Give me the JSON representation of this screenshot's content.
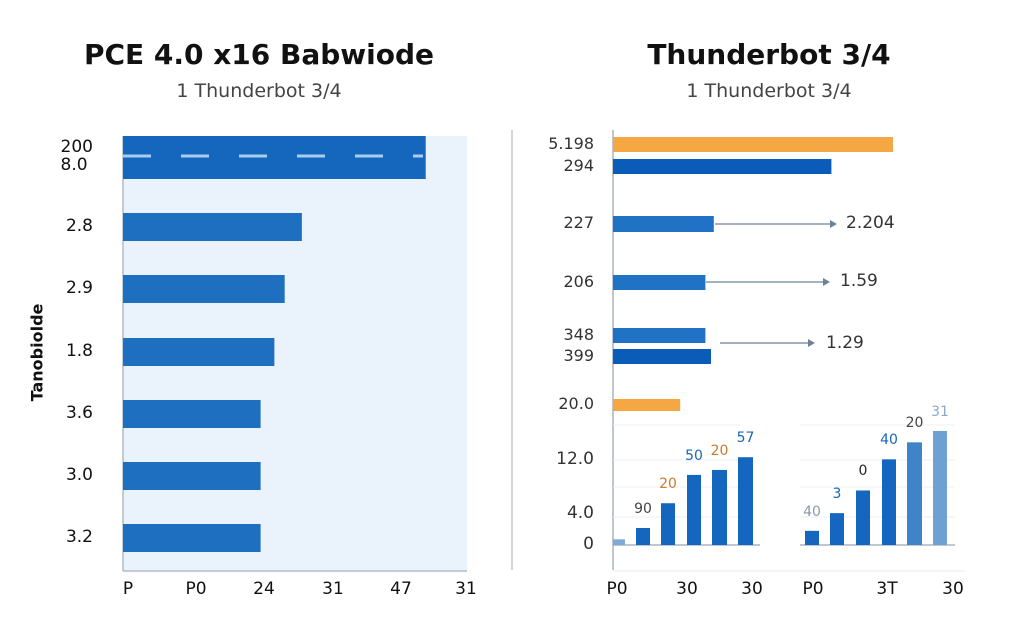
{
  "chart_data": [
    {
      "type": "bar",
      "orientation": "horizontal",
      "title": "PCE 4.0 x16 Babwiode",
      "subtitle": "1 Thunderbot 3/4",
      "ylabel": "Tanobiolde",
      "categories": [
        "200\n8.0",
        "2.8",
        "2.9",
        "1.8",
        "3.6",
        "3.0",
        "3.2"
      ],
      "values_pct_of_axis": [
        88,
        52,
        47,
        44,
        40,
        40,
        40
      ],
      "x_tick_labels": [
        "P",
        "P0",
        "24",
        "31",
        "47",
        "31"
      ],
      "color": "#1f6fc0",
      "background": "#eaf3fb"
    },
    {
      "type": "bar",
      "orientation": "horizontal",
      "title": "Thunderbot 3/4",
      "subtitle": "1 Thunderbot 3/4",
      "bars": [
        {
          "label": "5.198",
          "pct": 100,
          "color": "#f5a743"
        },
        {
          "label": "294",
          "pct": 78,
          "color": "#0b5cb8"
        },
        {
          "label": "227",
          "pct": 36,
          "color": "#1f72c4",
          "annotation": "2.204"
        },
        {
          "label": "206",
          "pct": 33,
          "color": "#1f72c4",
          "annotation": "1.59"
        },
        {
          "label": "348",
          "pct": 33,
          "color": "#1f72c4",
          "annotation": "1.29"
        },
        {
          "label": "399",
          "pct": 35,
          "color": "#0b5cb8"
        },
        {
          "label": "20.0",
          "pct": 24,
          "color": "#f5a743"
        }
      ]
    },
    {
      "type": "bar",
      "y_tick_labels": [
        "12.0",
        "4.0",
        "0"
      ],
      "ylim": [
        0,
        18
      ],
      "groups": [
        {
          "values": [
            0.8,
            2.4,
            5.9,
            9.9,
            10.6,
            12.4
          ],
          "data_labels": [
            "",
            "90",
            "20",
            "50",
            "20",
            "57"
          ],
          "label_colors": [
            "",
            "#444",
            "#d07a2a",
            "#1a66b8",
            "#d07a2a",
            "#1a66b8"
          ],
          "x_tick_labels": [
            "P0",
            "30",
            "30"
          ]
        },
        {
          "values": [
            2.0,
            4.5,
            7.7,
            12.1,
            14.5,
            16.1
          ],
          "data_labels": [
            "40",
            "3",
            "0",
            "40",
            "20",
            "31"
          ],
          "label_colors": [
            "#8a9aaa",
            "#1a66b8",
            "#222",
            "#1a66b8",
            "#444",
            "#8aaac8"
          ],
          "x_tick_labels": [
            "P0",
            "3T",
            "30"
          ]
        }
      ]
    }
  ]
}
